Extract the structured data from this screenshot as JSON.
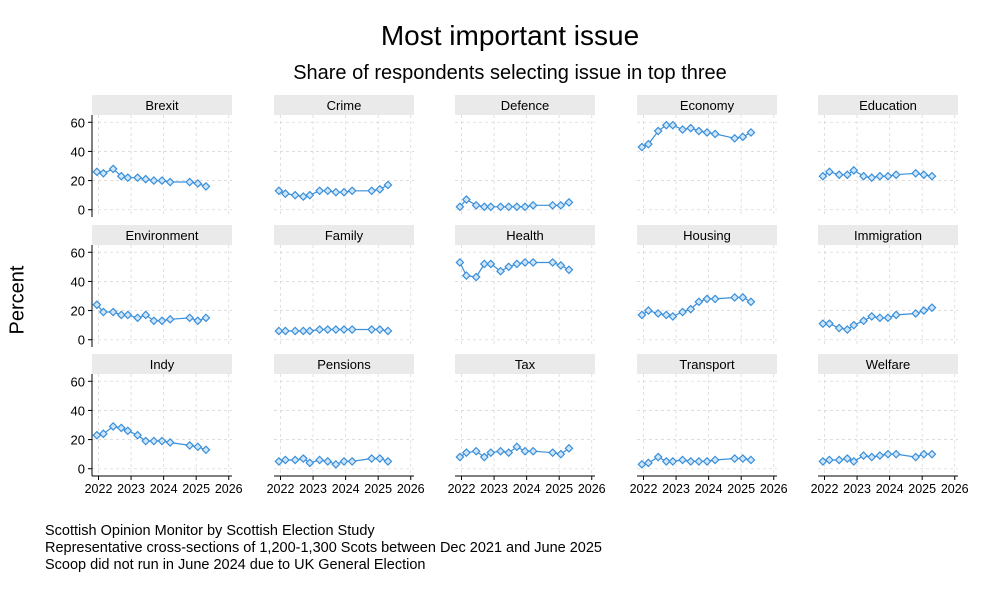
{
  "chart_data": {
    "type": "line",
    "title": "Most important issue",
    "subtitle": "Share of respondents selecting issue in top three",
    "ylabel": "Percent",
    "xlabel": "",
    "ylim": [
      -5,
      65
    ],
    "xlim": [
      2021.8,
      2026.1
    ],
    "yticks": [
      0,
      20,
      40,
      60
    ],
    "xticks": [
      2022,
      2023,
      2024,
      2025,
      2026
    ],
    "grid": true,
    "line_color": "#3a8fd9",
    "x": [
      2021.95,
      2022.15,
      2022.45,
      2022.7,
      2022.9,
      2023.2,
      2023.45,
      2023.7,
      2023.95,
      2024.2,
      2024.8,
      2025.05,
      2025.3
    ],
    "series": [
      {
        "name": "Brexit",
        "values": [
          26,
          25,
          28,
          23,
          22,
          22,
          21,
          20,
          20,
          19,
          19,
          18,
          16
        ]
      },
      {
        "name": "Crime",
        "values": [
          13,
          11,
          10,
          9,
          10,
          13,
          13,
          12,
          12,
          13,
          13,
          14,
          17
        ]
      },
      {
        "name": "Defence",
        "values": [
          2,
          7,
          3,
          2,
          2,
          2,
          2,
          2,
          2,
          3,
          3,
          3,
          5
        ]
      },
      {
        "name": "Economy",
        "values": [
          43,
          45,
          54,
          58,
          58,
          55,
          56,
          54,
          53,
          52,
          49,
          50,
          53
        ]
      },
      {
        "name": "Education",
        "values": [
          23,
          26,
          24,
          24,
          27,
          23,
          22,
          23,
          23,
          24,
          25,
          24,
          23
        ]
      },
      {
        "name": "Environment",
        "values": [
          24,
          19,
          19,
          17,
          17,
          15,
          17,
          13,
          13,
          14,
          15,
          13,
          15
        ]
      },
      {
        "name": "Family",
        "values": [
          6,
          6,
          6,
          6,
          6,
          7,
          7,
          7,
          7,
          7,
          7,
          7,
          6
        ]
      },
      {
        "name": "Health",
        "values": [
          53,
          44,
          43,
          52,
          52,
          47,
          50,
          52,
          53,
          53,
          53,
          51,
          48
        ]
      },
      {
        "name": "Housing",
        "values": [
          17,
          20,
          18,
          17,
          16,
          19,
          21,
          26,
          28,
          28,
          29,
          29,
          26
        ]
      },
      {
        "name": "Immigration",
        "values": [
          11,
          11,
          8,
          7,
          10,
          13,
          16,
          15,
          15,
          17,
          18,
          20,
          22
        ]
      },
      {
        "name": "Indy",
        "values": [
          23,
          24,
          29,
          28,
          26,
          23,
          19,
          19,
          19,
          18,
          16,
          15,
          13
        ]
      },
      {
        "name": "Pensions",
        "values": [
          5,
          6,
          6,
          7,
          4,
          6,
          5,
          3,
          5,
          5,
          7,
          7,
          5
        ]
      },
      {
        "name": "Tax",
        "values": [
          8,
          11,
          12,
          8,
          11,
          12,
          11,
          15,
          12,
          12,
          11,
          10,
          14
        ]
      },
      {
        "name": "Transport",
        "values": [
          3,
          4,
          8,
          5,
          5,
          6,
          5,
          5,
          5,
          6,
          7,
          7,
          6
        ]
      },
      {
        "name": "Welfare",
        "values": [
          5,
          6,
          6,
          7,
          5,
          9,
          8,
          9,
          10,
          10,
          8,
          10,
          10
        ]
      }
    ]
  },
  "notes": [
    "Scottish Opinion Monitor by Scottish Election Study",
    "Representative cross-sections of 1,200-1,300 Scots between Dec 2021 and June 2025",
    "Scoop did not run in June 2024 due to UK General Election"
  ]
}
